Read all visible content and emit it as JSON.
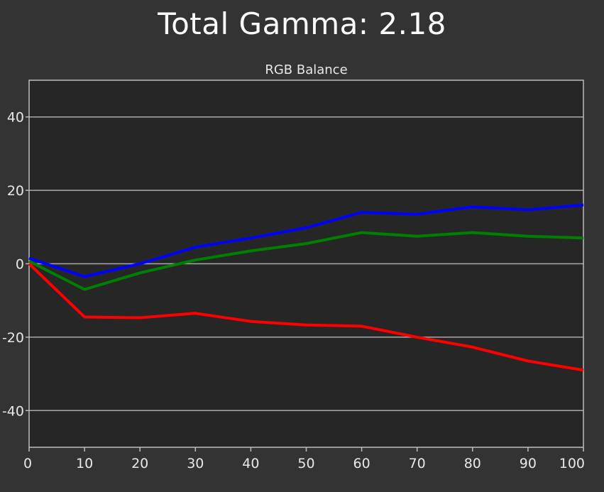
{
  "page": {
    "title": "Total Gamma: 2.18"
  },
  "chart_data": {
    "type": "line",
    "title": "RGB Balance",
    "xlabel": "",
    "ylabel": "",
    "xlim": [
      0,
      100
    ],
    "ylim": [
      -50,
      50
    ],
    "x_ticks": [
      0,
      10,
      20,
      30,
      40,
      50,
      60,
      70,
      80,
      90,
      100
    ],
    "y_ticks": [
      -40,
      -20,
      0,
      20,
      40
    ],
    "grid": "horizontal",
    "legend": "none",
    "colors": {
      "background": "#333333",
      "plot_background": "#262626",
      "grid": "#a9a9a9",
      "axis": "#bdbdbd",
      "text": "#e8e8e8"
    },
    "x": [
      0,
      10,
      20,
      30,
      40,
      50,
      60,
      70,
      80,
      90,
      100
    ],
    "series": [
      {
        "color": "#0000ff",
        "values": [
          1.5,
          -3.5,
          0,
          4.5,
          7,
          9.8,
          14,
          13.5,
          15.5,
          14.7,
          16
        ]
      },
      {
        "color": "#008000",
        "values": [
          0.7,
          -7,
          -2.5,
          1,
          3.5,
          5.5,
          8.5,
          7.5,
          8.5,
          7.5,
          7
        ]
      },
      {
        "color": "#ff0000",
        "values": [
          0,
          -14.5,
          -14.7,
          -13.5,
          -15.7,
          -16.7,
          -17,
          -20,
          -22.7,
          -26.5,
          -29
        ]
      }
    ]
  }
}
